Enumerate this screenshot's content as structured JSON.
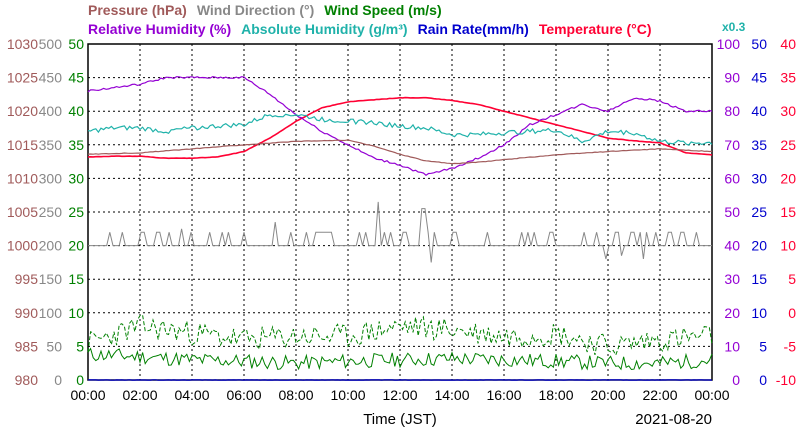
{
  "chart_data": {
    "type": "line",
    "date": "2021-08-20",
    "xlabel": "Time (JST)",
    "x_ticks": [
      "00:00",
      "02:00",
      "04:00",
      "06:00",
      "08:00",
      "10:00",
      "12:00",
      "14:00",
      "16:00",
      "18:00",
      "20:00",
      "22:00",
      "00:00"
    ],
    "xlim_hours": [
      0,
      24
    ],
    "grid": true,
    "legend_row1": [
      {
        "text": "Pressure (hPa)",
        "color": "#a05a5a"
      },
      {
        "text": "Wind Direction (°)",
        "color": "#888888"
      },
      {
        "text": "Wind Speed (m/s)",
        "color": "#008000"
      }
    ],
    "legend_row2": [
      {
        "text": "Relative Humidity (%)",
        "color": "#9400d3"
      },
      {
        "text": "Absolute Humidity (g/m³)",
        "color": "#20b2aa"
      },
      {
        "text": "Rain Rate(mm/h)",
        "color": "#0000cd"
      },
      {
        "text": "Temperature (°C)",
        "color": "#ff0033"
      }
    ],
    "rain_factor_label": "x0.3",
    "axes": {
      "pressure": {
        "color": "#a05a5a",
        "ticks": [
          "1030",
          "1025",
          "1020",
          "1015",
          "1010",
          "1005",
          "1000",
          "995",
          "990",
          "985",
          "980"
        ]
      },
      "wind_direction": {
        "color": "#888888",
        "ticks": [
          "500",
          "450",
          "400",
          "350",
          "300",
          "250",
          "200",
          "150",
          "100",
          "50",
          "0"
        ]
      },
      "wind_speed": {
        "color": "#008000",
        "ticks": [
          "50",
          "45",
          "40",
          "35",
          "30",
          "25",
          "20",
          "15",
          "10",
          "5",
          "0"
        ]
      },
      "relative_humidity": {
        "color": "#9400d3",
        "ticks": [
          "100",
          "90",
          "80",
          "70",
          "60",
          "50",
          "40",
          "30",
          "20",
          "10",
          "0"
        ]
      },
      "rain_rate": {
        "color": "#0000cd",
        "ticks": [
          "50",
          "45",
          "40",
          "35",
          "30",
          "25",
          "20",
          "15",
          "10",
          "5",
          "0"
        ]
      },
      "temperature": {
        "color": "#ff0033",
        "ticks": [
          "40",
          "35",
          "30",
          "25",
          "20",
          "15",
          "10",
          "5",
          "0",
          "-5",
          "-10"
        ]
      }
    },
    "series": [
      {
        "name": "Temperature (°C)",
        "color": "#ff0033",
        "axis": "temperature",
        "x": [
          0,
          1,
          2,
          3,
          4,
          5,
          6,
          7,
          8,
          9,
          10,
          11,
          12,
          13,
          14,
          15,
          16,
          17,
          18,
          19,
          20,
          21,
          22,
          23,
          24
        ],
        "y": [
          23.2,
          23.3,
          23.3,
          23.0,
          23.0,
          23.2,
          24.0,
          26.0,
          28.5,
          30.5,
          31.4,
          31.7,
          32.0,
          32.0,
          31.6,
          31.0,
          30.0,
          29.0,
          28.0,
          27.0,
          26.0,
          25.6,
          25.3,
          23.8,
          23.5
        ]
      },
      {
        "name": "Relative Humidity (%)",
        "color": "#9400d3",
        "axis": "relative_humidity",
        "x": [
          0,
          1,
          2,
          3,
          4,
          5,
          6,
          7,
          8,
          9,
          10,
          11,
          12,
          13,
          14,
          15,
          16,
          17,
          18,
          19,
          20,
          21,
          22,
          23,
          24
        ],
        "y": [
          86,
          87,
          88,
          90,
          90,
          90,
          90,
          85,
          79,
          74,
          70,
          66,
          64,
          61,
          63,
          66,
          70,
          76,
          79,
          82,
          80,
          84,
          83,
          80,
          80
        ]
      },
      {
        "name": "Absolute Humidity (g/m³)",
        "color": "#20b2aa",
        "axis": "wind_speed",
        "x": [
          0,
          1,
          2,
          3,
          4,
          5,
          6,
          7,
          8,
          9,
          10,
          11,
          12,
          13,
          14,
          15,
          16,
          17,
          18,
          19,
          20,
          21,
          22,
          23,
          24
        ],
        "y": [
          37.0,
          37.5,
          37.5,
          37.0,
          37.5,
          37.8,
          38.0,
          39.5,
          39.5,
          38.8,
          38.5,
          38.3,
          37.8,
          37.5,
          36.5,
          36.5,
          36.8,
          37.0,
          37.2,
          35.5,
          37.0,
          36.8,
          35.5,
          35.3,
          35.3
        ]
      },
      {
        "name": "Pressure (hPa)",
        "color": "#a05a5a",
        "axis": "pressure",
        "x": [
          0,
          2,
          4,
          6,
          8,
          10,
          11,
          12,
          13,
          14,
          15,
          16,
          18,
          20,
          22,
          24
        ],
        "y": [
          1013.6,
          1013.8,
          1014.4,
          1015.0,
          1015.5,
          1015.7,
          1014.8,
          1013.6,
          1012.6,
          1012.2,
          1012.4,
          1012.8,
          1013.5,
          1014.0,
          1014.4,
          1014.0
        ]
      },
      {
        "name": "Wind Direction (°)",
        "color": "#888888",
        "axis": "wind_direction",
        "baseline": 200,
        "upper": 220,
        "spikes": [
          [
            2.1,
            220
          ],
          [
            3.6,
            225
          ],
          [
            7.2,
            235
          ],
          [
            11.2,
            265
          ],
          [
            12.9,
            255
          ],
          [
            13.2,
            175
          ],
          [
            17.8,
            220
          ],
          [
            19.9,
            180
          ],
          [
            20.5,
            185
          ],
          [
            21.4,
            180
          ]
        ]
      },
      {
        "name": "Wind Speed (m/s)",
        "color": "#008000",
        "axis": "wind_speed",
        "mean_x": [
          0,
          2,
          4,
          6,
          8,
          10,
          12,
          14,
          16,
          18,
          20,
          22,
          24
        ],
        "mean_y": [
          3.8,
          3.5,
          3.0,
          2.8,
          2.5,
          2.8,
          3.0,
          3.2,
          3.0,
          2.8,
          2.5,
          2.5,
          3.0
        ],
        "gust_x": [
          0,
          2,
          4,
          6,
          8,
          10,
          12,
          14,
          16,
          18,
          20,
          22,
          24
        ],
        "gust_y": [
          5.5,
          8,
          7,
          6,
          6.5,
          6.5,
          8,
          7.5,
          6.5,
          7,
          5,
          6,
          6.5
        ]
      },
      {
        "name": "Rain Rate(mm/h)",
        "color": "#0000cd",
        "axis": "rain_rate",
        "x": [
          0,
          24
        ],
        "y": [
          0,
          0
        ]
      }
    ]
  }
}
